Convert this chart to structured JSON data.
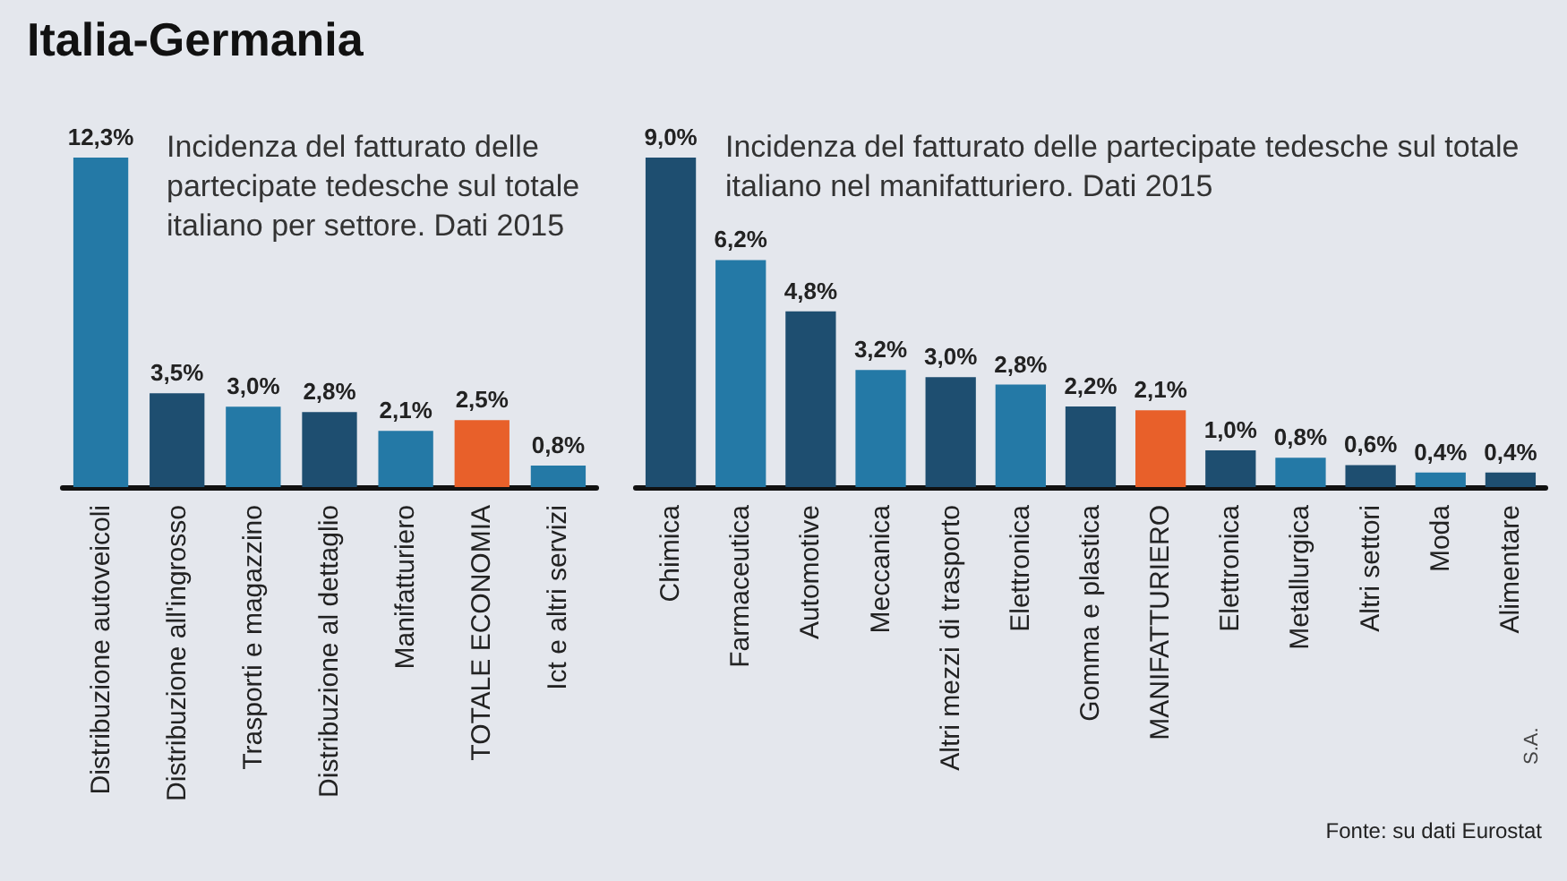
{
  "chart_data": [
    {
      "type": "bar",
      "title": "Italia-Germania",
      "subtitle": "Incidenza del fatturato delle partecipate tedesche sul totale italiano per settore. Dati 2015",
      "categories": [
        "Distribuzione autoveicoli",
        "Distribuzione all'ingrosso",
        "Trasporti e magazzino",
        "Distribuzione al dettaglio",
        "Manifatturiero",
        "TOTALE ECONOMIA",
        "Ict e altri servizi"
      ],
      "values": [
        12.3,
        3.5,
        3.0,
        2.8,
        2.1,
        2.5,
        0.8
      ],
      "value_labels": [
        "12,3%",
        "3,5%",
        "3,0%",
        "2,8%",
        "2,1%",
        "2,5%",
        "0,8%"
      ],
      "colors": [
        "#2479a6",
        "#1e4e70",
        "#2479a6",
        "#1e4e70",
        "#2479a6",
        "#e8602a",
        "#2479a6"
      ]
    },
    {
      "type": "bar",
      "subtitle": "Incidenza del fatturato delle partecipate tedesche sul totale italiano nel manifatturiero. Dati 2015",
      "categories": [
        "Chimica",
        "Farmaceutica",
        "Automotive",
        "Meccanica",
        "Altri mezzi di trasporto",
        "Elettronica",
        "Gomma e plastica",
        "MANIFATTURIERO",
        "Elettronica",
        "Metallurgica",
        "Altri settori",
        "Moda",
        "Alimentare"
      ],
      "values": [
        9.0,
        6.2,
        4.8,
        3.2,
        3.0,
        2.8,
        2.2,
        2.1,
        1.0,
        0.8,
        0.6,
        0.4,
        0.4
      ],
      "value_labels": [
        "9,0%",
        "6,2%",
        "4,8%",
        "3,2%",
        "3,0%",
        "2,8%",
        "2,2%",
        "2,1%",
        "1,0%",
        "0,8%",
        "0,6%",
        "0,4%",
        "0,4%"
      ],
      "colors": [
        "#1e4e70",
        "#2479a6",
        "#1e4e70",
        "#2479a6",
        "#1e4e70",
        "#2479a6",
        "#1e4e70",
        "#e8602a",
        "#1e4e70",
        "#2479a6",
        "#1e4e70",
        "#2479a6",
        "#1e4e70"
      ],
      "annotations": [
        "Fonte: su dati Eurostat",
        "S.A."
      ]
    }
  ]
}
